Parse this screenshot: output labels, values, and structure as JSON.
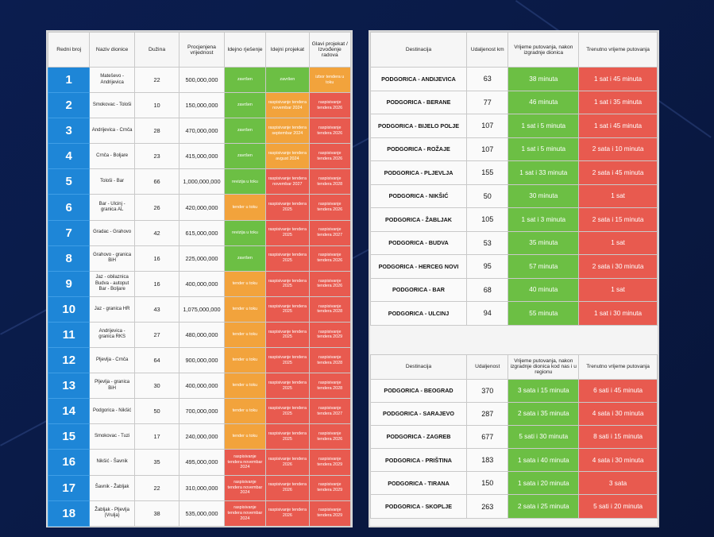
{
  "colors": {
    "green": "#6cbf44",
    "red": "#e85a4f",
    "orange": "#f2a33c",
    "blue": "#1e86d7"
  },
  "sections": {
    "headers": [
      "Redni broj",
      "Naziv dionice",
      "Dužina",
      "Procjenjena vrijednost",
      "Idejno rješenje",
      "Idejni projekat",
      "Glavi projekat / Izvođenje radova"
    ],
    "rows": [
      {
        "n": "1",
        "name": "Mateševo - Andrijevica",
        "len": "22",
        "value": "500,000,000",
        "c1": {
          "t": "završen",
          "s": "g"
        },
        "c2": {
          "t": "završen",
          "s": "g"
        },
        "c3": {
          "t": "izbor tendera u toku",
          "s": "o"
        }
      },
      {
        "n": "2",
        "name": "Smokovac - Tološi",
        "len": "10",
        "value": "150,000,000",
        "c1": {
          "t": "završen",
          "s": "g"
        },
        "c2": {
          "t": "raspisivanje tendera novembar 2024",
          "s": "o"
        },
        "c3": {
          "t": "raspisivanje tendera 2026",
          "s": "r"
        }
      },
      {
        "n": "3",
        "name": "Andrijevica - Crnča",
        "len": "28",
        "value": "470,000,000",
        "c1": {
          "t": "završen",
          "s": "g"
        },
        "c2": {
          "t": "raspisivanje tendera septembar 2024",
          "s": "o"
        },
        "c3": {
          "t": "raspisivanje tendera 2026",
          "s": "r"
        }
      },
      {
        "n": "4",
        "name": "Crnča - Boljare",
        "len": "23",
        "value": "415,000,000",
        "c1": {
          "t": "završen",
          "s": "g"
        },
        "c2": {
          "t": "raspisivanje tendera avgust 2024",
          "s": "o"
        },
        "c3": {
          "t": "raspisivanje tendera 2026",
          "s": "r"
        }
      },
      {
        "n": "5",
        "name": "Tološi - Bar",
        "len": "66",
        "value": "1,000,000,000",
        "c1": {
          "t": "revizija u toku",
          "s": "g"
        },
        "c2": {
          "t": "raspisivanje tendera novembar 2027",
          "s": "r"
        },
        "c3": {
          "t": "raspisivanje tendera 2028",
          "s": "r"
        }
      },
      {
        "n": "6",
        "name": "Bar - Ulcinj - granica AL",
        "len": "26",
        "value": "420,000,000",
        "c1": {
          "t": "tender u toku",
          "s": "o"
        },
        "c2": {
          "t": "raspisivanje tendera 2025",
          "s": "r"
        },
        "c3": {
          "t": "raspisivanje tendera 2026",
          "s": "r"
        }
      },
      {
        "n": "7",
        "name": "Gradac - Grahovo",
        "len": "42",
        "value": "615,000,000",
        "c1": {
          "t": "revizija u toku",
          "s": "g"
        },
        "c2": {
          "t": "raspisivanje tendera 2025",
          "s": "r"
        },
        "c3": {
          "t": "raspisivanje tendera 2027",
          "s": "r"
        }
      },
      {
        "n": "8",
        "name": "Grahovo - granica BiH",
        "len": "16",
        "value": "225,000,000",
        "c1": {
          "t": "završen",
          "s": "g"
        },
        "c2": {
          "t": "raspisivanje tendera 2025",
          "s": "r"
        },
        "c3": {
          "t": "raspisivanje tendera 2026",
          "s": "r"
        }
      },
      {
        "n": "9",
        "name": "Jaz - obilaznica Budva - autoput Bar - Boljare",
        "len": "16",
        "value": "400,000,000",
        "c1": {
          "t": "tender u toku",
          "s": "o"
        },
        "c2": {
          "t": "raspisivanje tendera 2025",
          "s": "r"
        },
        "c3": {
          "t": "raspisivanje tendera 2026",
          "s": "r"
        }
      },
      {
        "n": "10",
        "name": "Jaz - granica HR",
        "len": "43",
        "value": "1,075,000,000",
        "c1": {
          "t": "tender u toku",
          "s": "o"
        },
        "c2": {
          "t": "raspisivanje tendera 2025",
          "s": "r"
        },
        "c3": {
          "t": "raspisivanje tendera 2028",
          "s": "r"
        }
      },
      {
        "n": "11",
        "name": "Andrijevica - granica RKS",
        "len": "27",
        "value": "480,000,000",
        "c1": {
          "t": "tender u toku",
          "s": "o"
        },
        "c2": {
          "t": "raspisivanje tendera 2025",
          "s": "r"
        },
        "c3": {
          "t": "raspisivanje tendera 2029",
          "s": "r"
        }
      },
      {
        "n": "12",
        "name": "Pljevlja - Crnča",
        "len": "64",
        "value": "900,000,000",
        "c1": {
          "t": "tender u toku",
          "s": "o"
        },
        "c2": {
          "t": "raspisivanje tendera 2025",
          "s": "r"
        },
        "c3": {
          "t": "raspisivanje tendera 2028",
          "s": "r"
        }
      },
      {
        "n": "13",
        "name": "Pljevlja - granica BiH",
        "len": "30",
        "value": "400,000,000",
        "c1": {
          "t": "tender u toku",
          "s": "o"
        },
        "c2": {
          "t": "raspisivanje tendera 2025",
          "s": "r"
        },
        "c3": {
          "t": "raspisivanje tendera 2028",
          "s": "r"
        }
      },
      {
        "n": "14",
        "name": "Podgorica - Nikšić",
        "len": "50",
        "value": "700,000,000",
        "c1": {
          "t": "tender u toku",
          "s": "o"
        },
        "c2": {
          "t": "raspisivanje tendera 2025",
          "s": "r"
        },
        "c3": {
          "t": "raspisivanje tendera 2027",
          "s": "r"
        }
      },
      {
        "n": "15",
        "name": "Smokovac - Tuzi",
        "len": "17",
        "value": "240,000,000",
        "c1": {
          "t": "tender u toku",
          "s": "o"
        },
        "c2": {
          "t": "raspisivanje tendera 2025",
          "s": "r"
        },
        "c3": {
          "t": "raspisivanje tendera 2026",
          "s": "r"
        }
      },
      {
        "n": "16",
        "name": "Nikšić - Šavnik",
        "len": "35",
        "value": "495,000,000",
        "c1": {
          "t": "raspisivanje tendera novembar 2024",
          "s": "r"
        },
        "c2": {
          "t": "raspisivanje tendera 2026",
          "s": "r"
        },
        "c3": {
          "t": "raspisivanje tendera 2029",
          "s": "r"
        }
      },
      {
        "n": "17",
        "name": "Šavnik - Žabljak",
        "len": "22",
        "value": "310,000,000",
        "c1": {
          "t": "raspisivanje tendera novembar 2024",
          "s": "r"
        },
        "c2": {
          "t": "raspisivanje tendera 2026",
          "s": "r"
        },
        "c3": {
          "t": "raspisivanje tendera 2029",
          "s": "r"
        }
      },
      {
        "n": "18",
        "name": "Žabljak - Pljevlja (Vrulja)",
        "len": "38",
        "value": "535,000,000",
        "c1": {
          "t": "raspisivanje tendera novembar 2024",
          "s": "r"
        },
        "c2": {
          "t": "raspisivanje tendera 2026",
          "s": "r"
        },
        "c3": {
          "t": "raspisivanje tendera 2029",
          "s": "r"
        }
      }
    ]
  },
  "domestic": {
    "headers": [
      "Destinacija",
      "Udaljenost km",
      "Vrijeme putovanja, nakon izgradnje dionica",
      "Trenutno vrijeme putovanja"
    ],
    "rows": [
      {
        "dest": "PODGORICA - ANDIJEVICA",
        "km": "63",
        "after": "38 minuta",
        "now": "1 sat i 45 minuta"
      },
      {
        "dest": "PODGORICA - BERANE",
        "km": "77",
        "after": "46 minuta",
        "now": "1 sat i 35 minuta"
      },
      {
        "dest": "PODGORICA - BIJELO POLJE",
        "km": "107",
        "after": "1 sat i 5 minuta",
        "now": "1 sat i 45 minuta"
      },
      {
        "dest": "PODGORICA - ROŽAJE",
        "km": "107",
        "after": "1 sat i 5 minuta",
        "now": "2 sata i 10 minuta"
      },
      {
        "dest": "PODGORICA - PLJEVLJA",
        "km": "155",
        "after": "1 sat i 33 minuta",
        "now": "2 sata i 45 minuta"
      },
      {
        "dest": "PODGORICA - NIKŠIĆ",
        "km": "50",
        "after": "30 minuta",
        "now": "1 sat"
      },
      {
        "dest": "PODGORICA - ŽABLJAK",
        "km": "105",
        "after": "1 sat i 3 minuta",
        "now": "2 sata i 15 minuta"
      },
      {
        "dest": "PODGORICA - BUDVA",
        "km": "53",
        "after": "35 minuta",
        "now": "1 sat"
      },
      {
        "dest": "PODGORICA - HERCEG NOVI",
        "km": "95",
        "after": "57 minuta",
        "now": "2 sata i 30 minuta"
      },
      {
        "dest": "PODGORICA - BAR",
        "km": "68",
        "after": "40 minuta",
        "now": "1 sat"
      },
      {
        "dest": "PODGORICA - ULCINJ",
        "km": "94",
        "after": "55 minuta",
        "now": "1 sat i 30 minuta"
      }
    ]
  },
  "regional": {
    "headers": [
      "Destinacija",
      "Udaljenost",
      "Vrijeme putovanja, nakon izgradnje dionica kod nas i u regionu",
      "Trenutno vrijeme putovanja"
    ],
    "rows": [
      {
        "dest": "PODGORICA - BEOGRAD",
        "km": "370",
        "after": "3 sata i 15 minuta",
        "now": "6 sati i 45 minuta"
      },
      {
        "dest": "PODGORICA - SARAJEVO",
        "km": "287",
        "after": "2 sata i 35 minuta",
        "now": "4 sata i 30 minuta"
      },
      {
        "dest": "PODGORICA - ZAGREB",
        "km": "677",
        "after": "5 sati i 30 minuta",
        "now": "8 sati i 15 minuta"
      },
      {
        "dest": "PODGORICA - PRIŠTINA",
        "km": "183",
        "after": "1 sata i 40 minuta",
        "now": "4 sata i 30 minuta"
      },
      {
        "dest": "PODGORICA - TIRANA",
        "km": "150",
        "after": "1 sata i 20 minuta",
        "now": "3 sata"
      },
      {
        "dest": "PODGORICA - SKOPLJE",
        "km": "263",
        "after": "2 sata i 25 minuta",
        "now": "5 sati i 20 minuta"
      }
    ]
  }
}
